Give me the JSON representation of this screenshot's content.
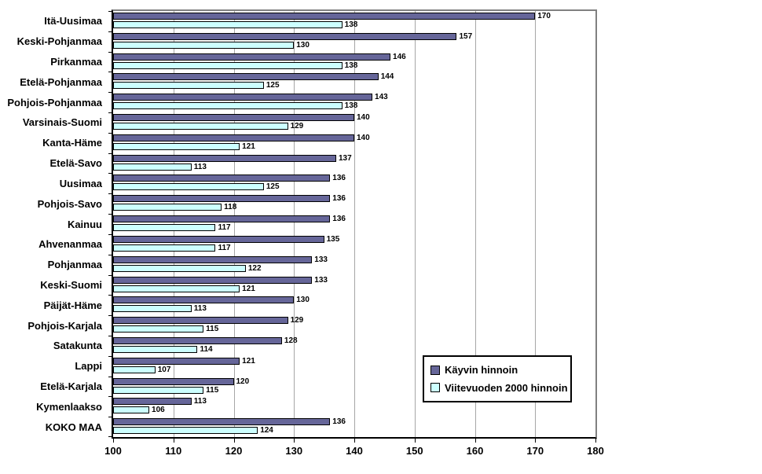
{
  "chart_data": {
    "type": "bar",
    "orientation": "horizontal",
    "title": "",
    "xlabel": "",
    "ylabel": "",
    "xlim": [
      100,
      180
    ],
    "xticks": [
      100,
      110,
      120,
      130,
      140,
      150,
      160,
      170,
      180
    ],
    "grid": true,
    "legend_position": "inside-lower-right",
    "categories": [
      "Itä-Uusimaa",
      "Keski-Pohjanmaa",
      "Pirkanmaa",
      "Etelä-Pohjanmaa",
      "Pohjois-Pohjanmaa",
      "Varsinais-Suomi",
      "Kanta-Häme",
      "Etelä-Savo",
      "Uusimaa",
      "Pohjois-Savo",
      "Kainuu",
      "Ahvenanmaa",
      "Pohjanmaa",
      "Keski-Suomi",
      "Päijät-Häme",
      "Pohjois-Karjala",
      "Satakunta",
      "Lappi",
      "Etelä-Karjala",
      "Kymenlaakso",
      "KOKO MAA"
    ],
    "series": [
      {
        "name": "Käyvin hinnoin",
        "color": "#666699",
        "values": [
          170,
          157,
          146,
          144,
          143,
          140,
          140,
          137,
          136,
          136,
          136,
          135,
          133,
          133,
          130,
          129,
          128,
          121,
          120,
          113,
          136
        ]
      },
      {
        "name": "Viitevuoden 2000 hinnoin",
        "color": "#CCFFFF",
        "values": [
          138,
          130,
          138,
          125,
          138,
          129,
          121,
          113,
          125,
          118,
          117,
          117,
          122,
          121,
          113,
          115,
          114,
          107,
          115,
          106,
          124
        ]
      }
    ]
  },
  "colors": {
    "plot_border": "#808080",
    "axis": "#000000",
    "gridline": "#a6a6a6",
    "background": "#ffffff",
    "label_text": "#000000"
  }
}
